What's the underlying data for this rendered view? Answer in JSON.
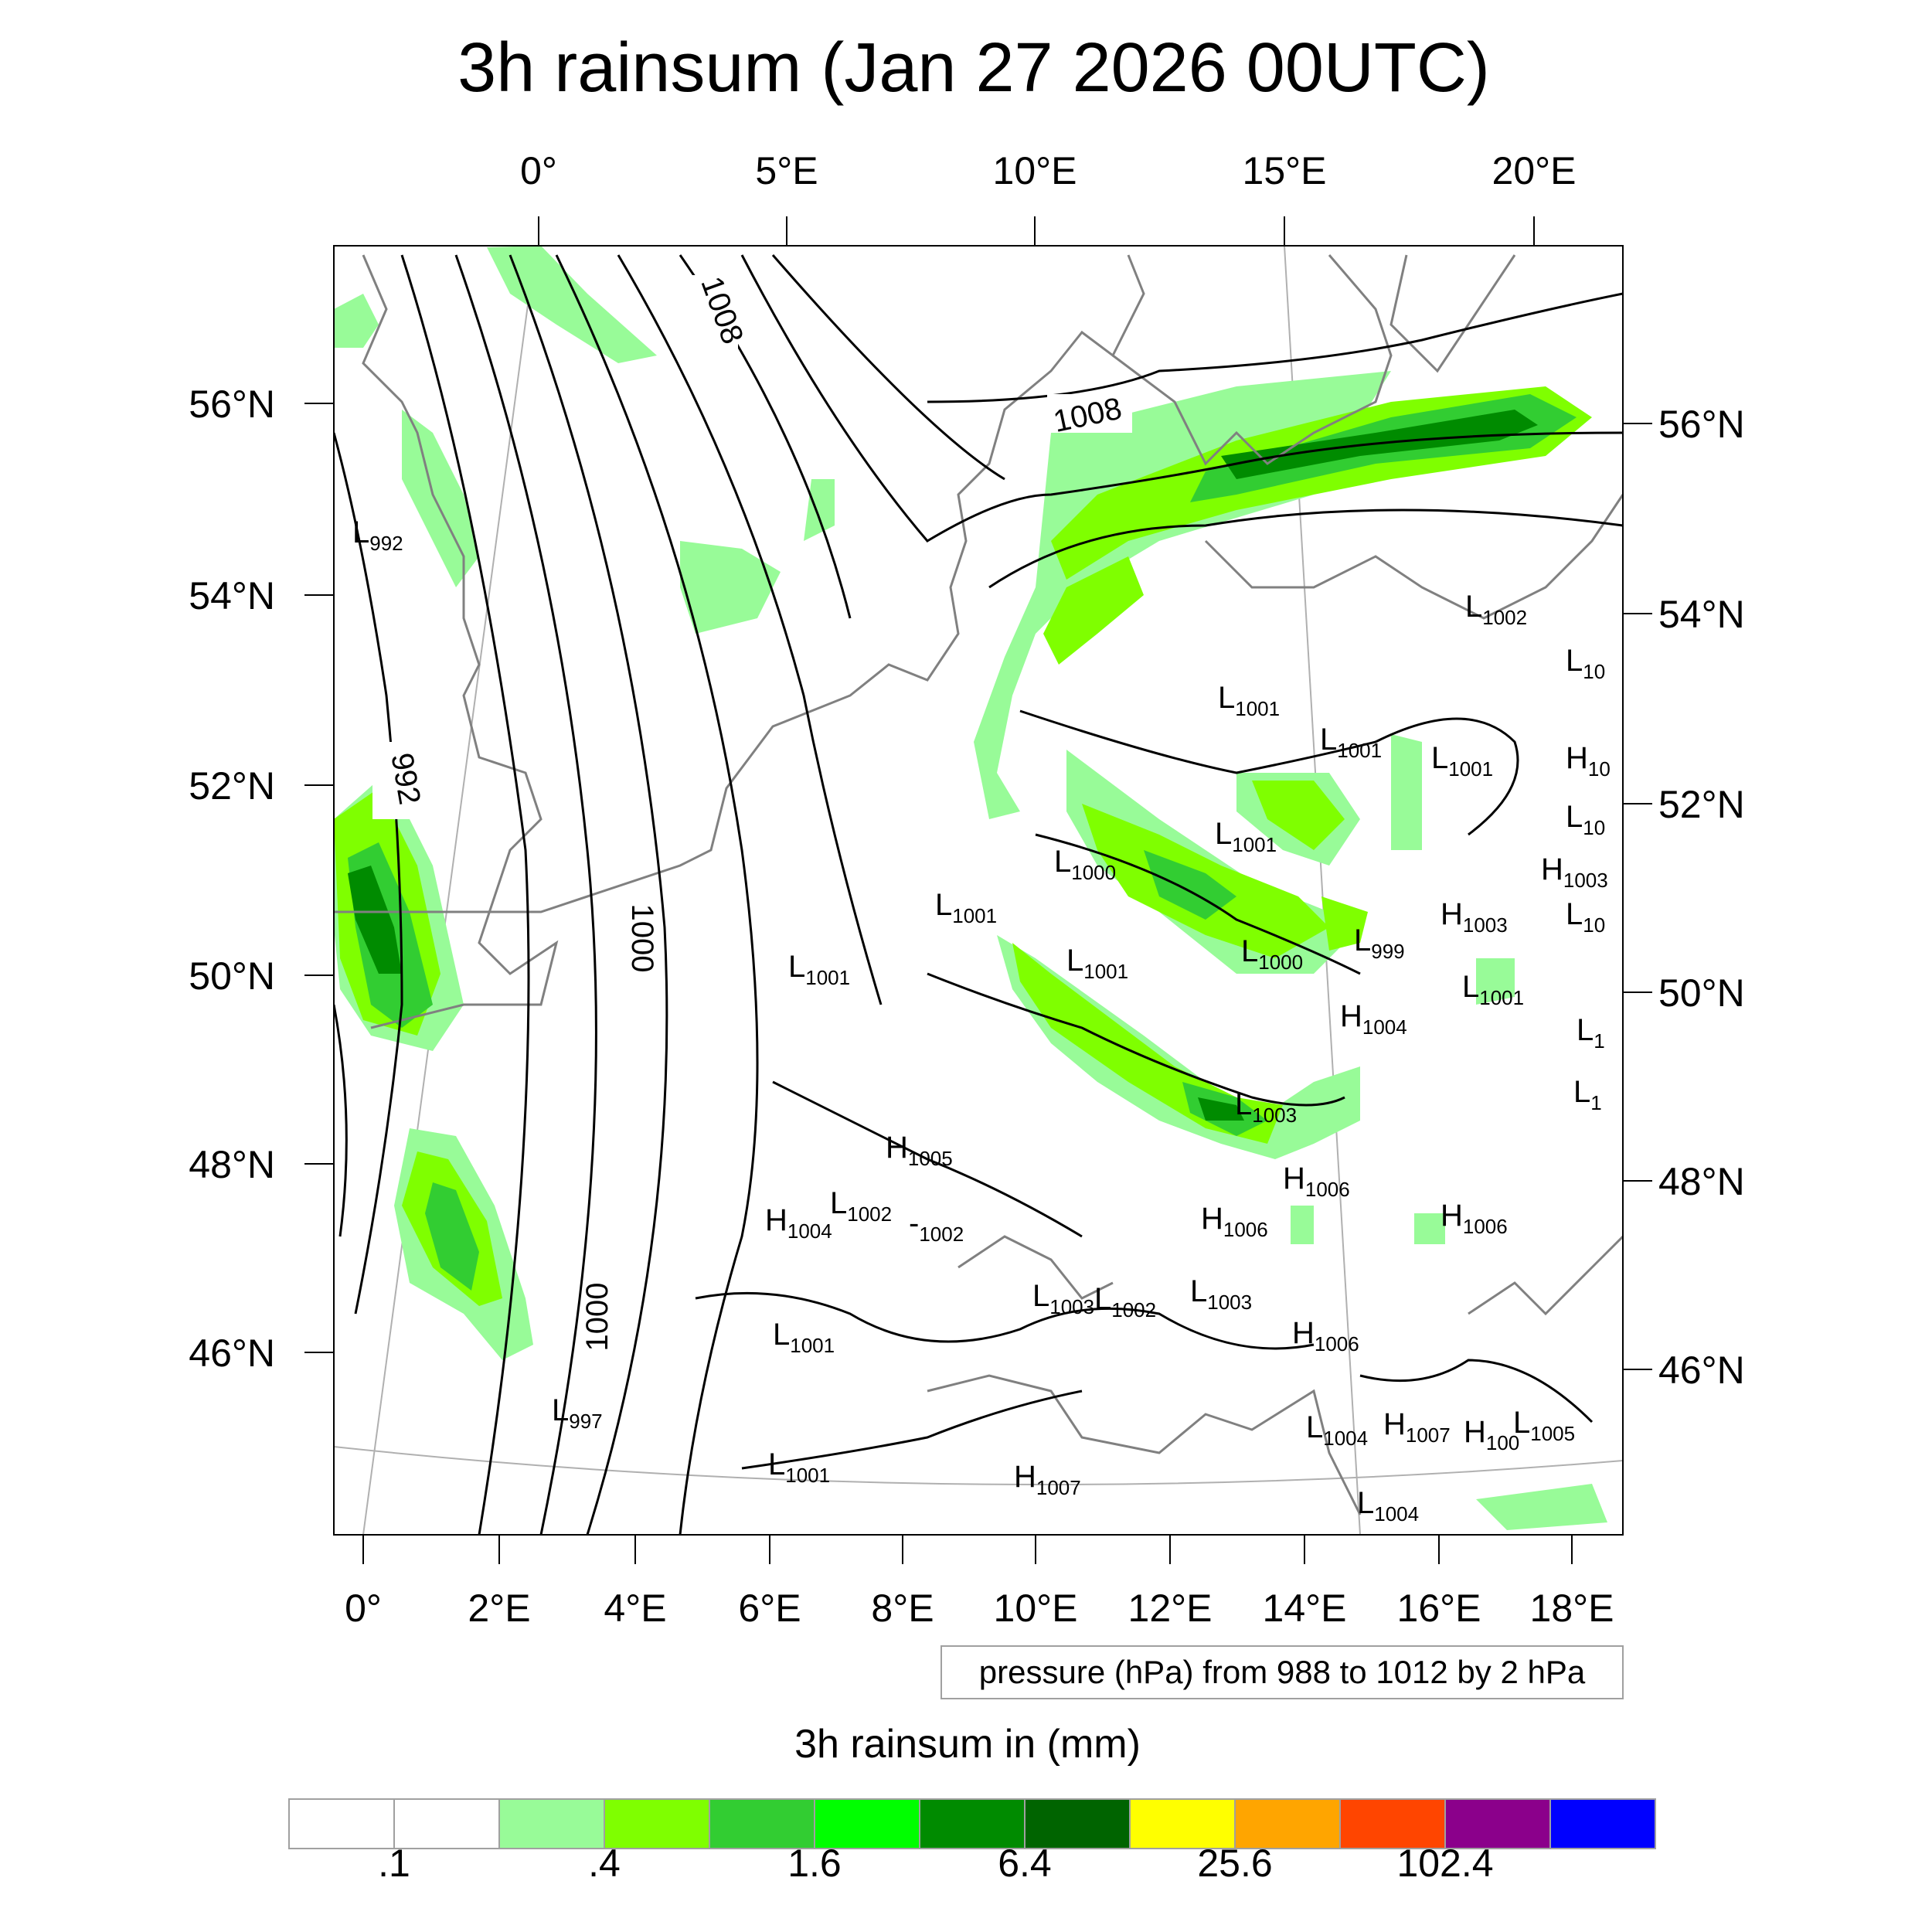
{
  "title": "3h rainsum (Jan 27 2026 00UTC)",
  "top_lon_ticks": [
    "0°",
    "5°E",
    "10°E",
    "15°E",
    "20°E"
  ],
  "bottom_lon_ticks": [
    "0°",
    "2°E",
    "4°E",
    "6°E",
    "8°E",
    "10°E",
    "12°E",
    "14°E",
    "16°E",
    "18°E"
  ],
  "left_lat_ticks": [
    "56°N",
    "54°N",
    "52°N",
    "50°N",
    "48°N",
    "46°N"
  ],
  "right_lat_ticks": [
    "56°N",
    "54°N",
    "52°N",
    "50°N",
    "48°N",
    "46°N"
  ],
  "contour_labels": [
    "1008",
    "1008",
    "992",
    "1000",
    "1000"
  ],
  "pressure_centers": [
    {
      "type": "L",
      "value": "992"
    },
    {
      "type": "L",
      "value": "1002"
    },
    {
      "type": "L",
      "value": "10"
    },
    {
      "type": "L",
      "value": "1001"
    },
    {
      "type": "L",
      "value": "1001"
    },
    {
      "type": "L",
      "value": "1001"
    },
    {
      "type": "H",
      "value": "10"
    },
    {
      "type": "L",
      "value": "1001"
    },
    {
      "type": "L",
      "value": "10"
    },
    {
      "type": "L",
      "value": "1000"
    },
    {
      "type": "H",
      "value": "1003"
    },
    {
      "type": "L",
      "value": "1001"
    },
    {
      "type": "H",
      "value": "1003"
    },
    {
      "type": "L",
      "value": "10"
    },
    {
      "type": "L",
      "value": "1000"
    },
    {
      "type": "L",
      "value": "999"
    },
    {
      "type": "L",
      "value": "1001"
    },
    {
      "type": "L",
      "value": "1001"
    },
    {
      "type": "L",
      "value": "1001"
    },
    {
      "type": "H",
      "value": "1004"
    },
    {
      "type": "L",
      "value": "1"
    },
    {
      "type": "L",
      "value": "1003"
    },
    {
      "type": "L",
      "value": "1"
    },
    {
      "type": "H",
      "value": "1005"
    },
    {
      "type": "H",
      "value": "1006"
    },
    {
      "type": "H",
      "value": "1004"
    },
    {
      "type": "L",
      "value": "1002"
    },
    {
      "type": "L",
      "value": "1002"
    },
    {
      "type": "H",
      "value": "1006"
    },
    {
      "type": "H",
      "value": "1006"
    },
    {
      "type": "L",
      "value": "1003"
    },
    {
      "type": "L",
      "value": "1002"
    },
    {
      "type": "L",
      "value": "1003"
    },
    {
      "type": "L",
      "value": "1001"
    },
    {
      "type": "H",
      "value": "1006"
    },
    {
      "type": "L",
      "value": "997"
    },
    {
      "type": "L",
      "value": "1004"
    },
    {
      "type": "H",
      "value": "1007"
    },
    {
      "type": "H",
      "value": "100"
    },
    {
      "type": "L",
      "value": "1005"
    },
    {
      "type": "L",
      "value": "1001"
    },
    {
      "type": "H",
      "value": "1007"
    },
    {
      "type": "L",
      "value": "1004"
    }
  ],
  "legend_text": "pressure (hPa) from 988 to 1012 by 2 hPa",
  "colorbar": {
    "title": "3h rainsum in (mm)",
    "colors": [
      "#ffffff",
      "#ffffff",
      "#98fb98",
      "#7fff00",
      "#32cd32",
      "#00ff00",
      "#008b00",
      "#006400",
      "#ffff00",
      "#ffa500",
      "#ff4500",
      "#8b008b",
      "#0000ff"
    ],
    "labels": [
      ".1",
      ".4",
      "1.6",
      "6.4",
      "25.6",
      "102.4"
    ]
  }
}
